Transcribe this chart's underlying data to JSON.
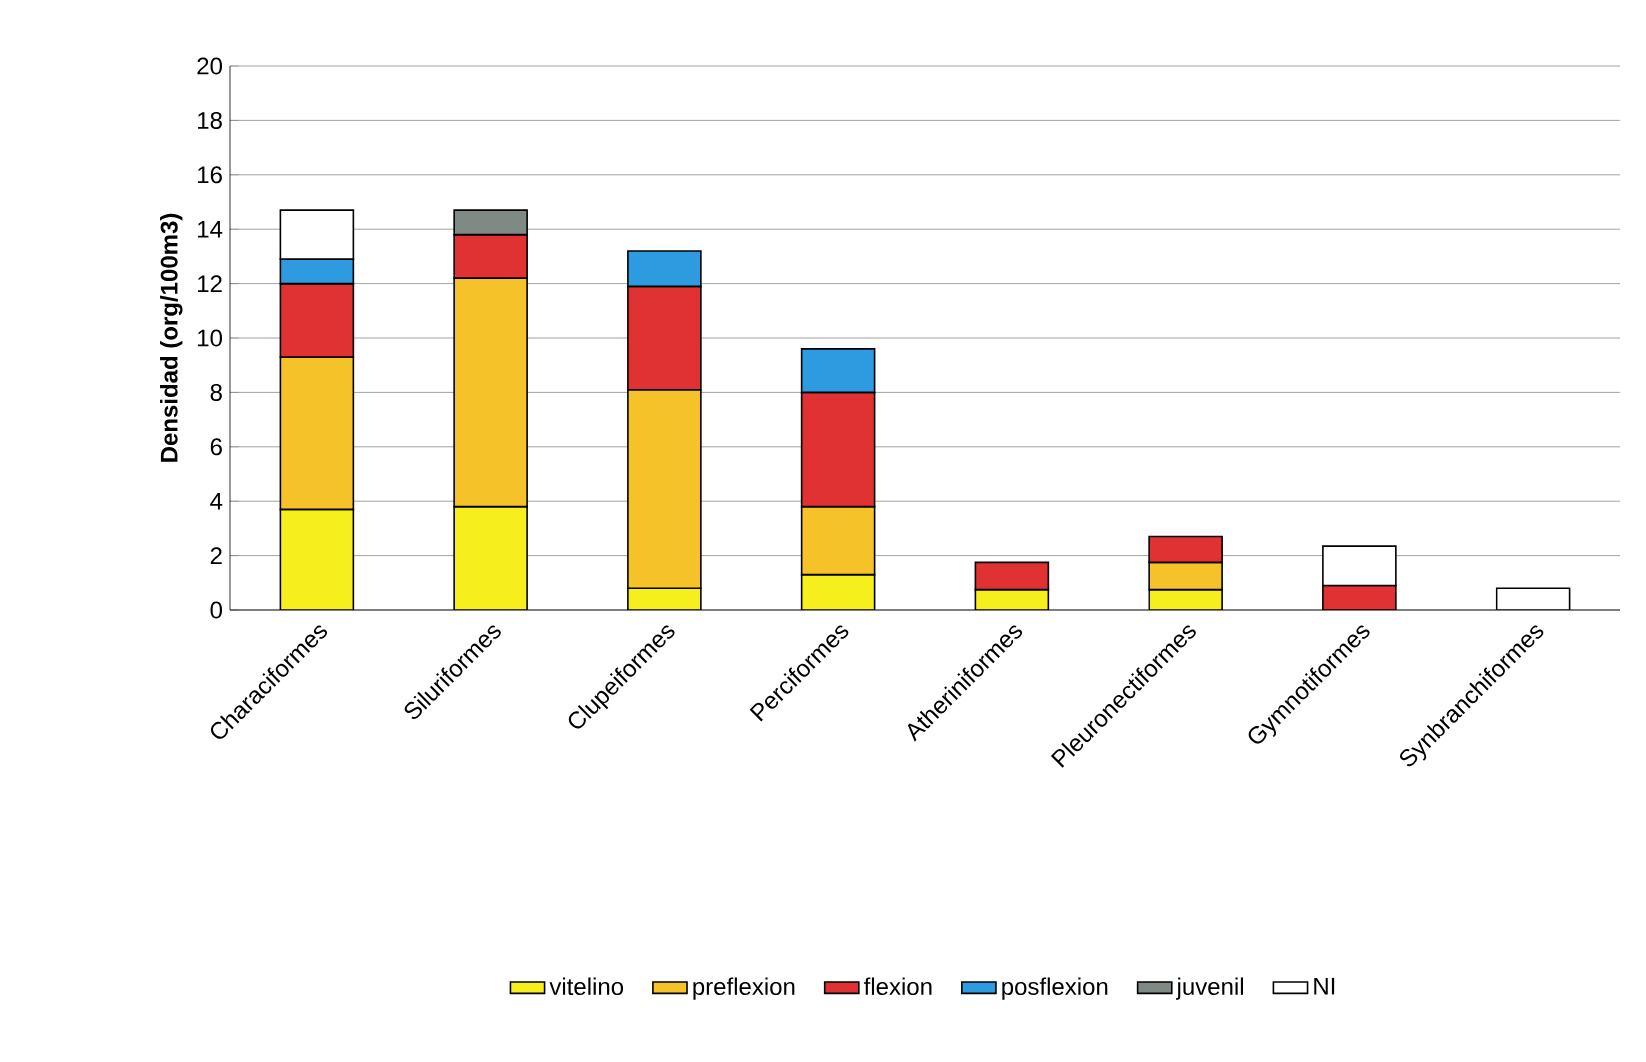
{
  "chart_data": {
    "type": "bar",
    "stacked": true,
    "ylabel": "Densidad (org/100m3)",
    "categories": [
      "Characiformes",
      "Siluriformes",
      "Clupeiformes",
      "Perciformes",
      "Atheriniformes",
      "Pleuronectiformes",
      "Gymnotiformes",
      "Synbranchiformes"
    ],
    "series": [
      {
        "name": "vitelino",
        "color": "#f7ee1e",
        "values": [
          3.7,
          3.8,
          0.8,
          1.3,
          0.75,
          0.75,
          null,
          null
        ]
      },
      {
        "name": "preflexion",
        "color": "#f5c22a",
        "values": [
          5.6,
          8.4,
          7.3,
          2.5,
          null,
          1.0,
          null,
          null
        ]
      },
      {
        "name": "flexion",
        "color": "#e03232",
        "values": [
          2.7,
          1.6,
          3.8,
          4.2,
          1.0,
          0.95,
          0.9,
          null
        ]
      },
      {
        "name": "posflexion",
        "color": "#2e9be0",
        "values": [
          0.9,
          null,
          1.3,
          1.6,
          null,
          null,
          null,
          null
        ]
      },
      {
        "name": "juvenil",
        "color": "#7f8a84",
        "values": [
          null,
          0.9,
          null,
          null,
          null,
          null,
          null,
          null
        ]
      },
      {
        "name": "NI",
        "color": "#ffffff",
        "values": [
          1.8,
          null,
          null,
          null,
          null,
          null,
          1.45,
          0.8
        ]
      }
    ],
    "ylim": [
      0,
      20
    ],
    "yticks": [
      0,
      2,
      4,
      6,
      8,
      10,
      12,
      14,
      16,
      18,
      20
    ],
    "grid": "y",
    "legend": "bottom"
  }
}
